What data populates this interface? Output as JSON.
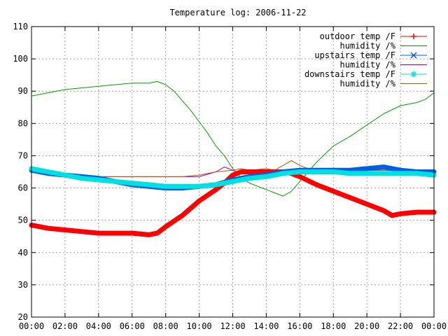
{
  "chart_data": {
    "type": "line",
    "title": "Temperature log: 2006-11-22",
    "xlabel": "",
    "ylabel": "",
    "x_ticks": [
      "00:00",
      "02:00",
      "04:00",
      "06:00",
      "08:00",
      "10:00",
      "12:00",
      "14:00",
      "16:00",
      "18:00",
      "20:00",
      "22:00",
      "00:00"
    ],
    "xlim": [
      0,
      24
    ],
    "ylim": [
      20,
      110
    ],
    "y_ticks": [
      20,
      30,
      40,
      50,
      60,
      70,
      80,
      90,
      100,
      110
    ],
    "grid": true,
    "legend_position": "top-right",
    "series": [
      {
        "name": "outdoor temp /F",
        "color": "#ff0000",
        "marker": "plus",
        "heavy": true,
        "x": [
          0,
          1,
          2,
          3,
          4,
          5,
          6,
          7,
          7.5,
          8,
          9,
          10,
          11,
          11.5,
          12,
          12.5,
          13,
          14,
          15,
          15.5,
          16,
          17,
          18,
          19,
          20,
          21,
          21.5,
          22,
          23,
          24
        ],
        "y": [
          48.5,
          47.5,
          47.0,
          46.5,
          46.0,
          46.0,
          46.0,
          45.5,
          46.0,
          48.0,
          51.5,
          56.0,
          59.5,
          61.5,
          64.0,
          65.0,
          65.0,
          65.0,
          65.0,
          64.5,
          63.5,
          61.0,
          59.0,
          57.0,
          55.0,
          53.0,
          51.5,
          52.0,
          52.5,
          52.5
        ]
      },
      {
        "name": "humidity /%",
        "color": "#00a000",
        "marker": "none",
        "heavy": false,
        "x": [
          0,
          1,
          2,
          3,
          4,
          5,
          6,
          7,
          7.5,
          8,
          8.5,
          9,
          9.5,
          10,
          10.5,
          11,
          11.5,
          12,
          12.5,
          13,
          13.5,
          14,
          14.5,
          15,
          15.5,
          16,
          16.5,
          17,
          17.5,
          18,
          19,
          20,
          21,
          22,
          23,
          23.5,
          24
        ],
        "y": [
          88.5,
          89.5,
          90.5,
          91.0,
          91.5,
          92.0,
          92.5,
          92.5,
          93.0,
          92.0,
          90.0,
          87.0,
          84.0,
          80.5,
          77.0,
          73.0,
          70.0,
          66.0,
          63.0,
          61.5,
          60.5,
          59.5,
          58.5,
          57.5,
          59.0,
          62.0,
          65.0,
          68.0,
          70.5,
          73.0,
          76.0,
          79.5,
          83.0,
          85.5,
          86.5,
          87.5,
          89.5
        ]
      },
      {
        "name": "upstairs temp /F",
        "color": "#0060e0",
        "marker": "cross",
        "heavy": true,
        "x": [
          0,
          1,
          2,
          3,
          4,
          5,
          6,
          7,
          8,
          9,
          10,
          11,
          12,
          13,
          14,
          15,
          16,
          17,
          18,
          19,
          20,
          21,
          22,
          23,
          24
        ],
        "y": [
          65.5,
          64.5,
          64.0,
          63.5,
          63.0,
          62.0,
          61.0,
          60.5,
          60.0,
          60.0,
          60.5,
          61.0,
          62.5,
          63.5,
          64.0,
          65.0,
          65.5,
          65.5,
          65.5,
          65.5,
          66.0,
          66.5,
          65.5,
          65.0,
          65.0
        ]
      },
      {
        "name": "humidity /%",
        "color": "#a000c0",
        "marker": "none",
        "heavy": false,
        "x": [
          0,
          1,
          2,
          3,
          4,
          5,
          6,
          7,
          8,
          9,
          10,
          11,
          11.5,
          12,
          12.5,
          13,
          14,
          15,
          16,
          17,
          18,
          19,
          20,
          21,
          22,
          23,
          24
        ],
        "y": [
          65.0,
          64.5,
          64.0,
          63.5,
          63.5,
          63.5,
          63.5,
          63.5,
          63.5,
          63.5,
          63.5,
          65.0,
          66.5,
          65.5,
          64.5,
          64.5,
          64.5,
          65.0,
          65.5,
          65.5,
          65.5,
          65.5,
          65.5,
          65.5,
          65.5,
          65.0,
          65.0
        ]
      },
      {
        "name": "downstairs temp /F",
        "color": "#00e0e0",
        "marker": "star",
        "heavy": true,
        "x": [
          0,
          1,
          2,
          3,
          4,
          5,
          6,
          7,
          8,
          9,
          10,
          11,
          12,
          13,
          14,
          15,
          16,
          17,
          18,
          19,
          20,
          21,
          22,
          23,
          24
        ],
        "y": [
          66.0,
          65.0,
          64.0,
          63.0,
          62.5,
          62.0,
          61.5,
          61.0,
          60.5,
          60.5,
          60.5,
          61.0,
          62.0,
          63.0,
          63.5,
          64.5,
          65.0,
          65.0,
          65.0,
          64.5,
          64.5,
          64.5,
          64.5,
          64.5,
          64.0
        ]
      },
      {
        "name": "humidity /%",
        "color": "#c05000",
        "marker": "none",
        "heavy": false,
        "x": [
          0,
          1,
          2,
          3,
          4,
          5,
          6,
          7,
          8,
          9,
          10,
          11,
          12,
          12.5,
          13,
          14,
          14.5,
          15,
          15.5,
          16,
          16.5,
          17,
          18,
          19,
          20,
          21,
          22,
          23,
          24
        ],
        "y": [
          65.5,
          64.5,
          64.0,
          64.0,
          63.5,
          63.5,
          63.5,
          63.5,
          63.5,
          63.5,
          64.0,
          65.0,
          65.5,
          66.0,
          65.5,
          66.0,
          65.5,
          67.0,
          68.5,
          67.0,
          66.0,
          65.5,
          65.5,
          65.5,
          65.5,
          65.5,
          65.5,
          65.0,
          65.0
        ]
      }
    ]
  }
}
